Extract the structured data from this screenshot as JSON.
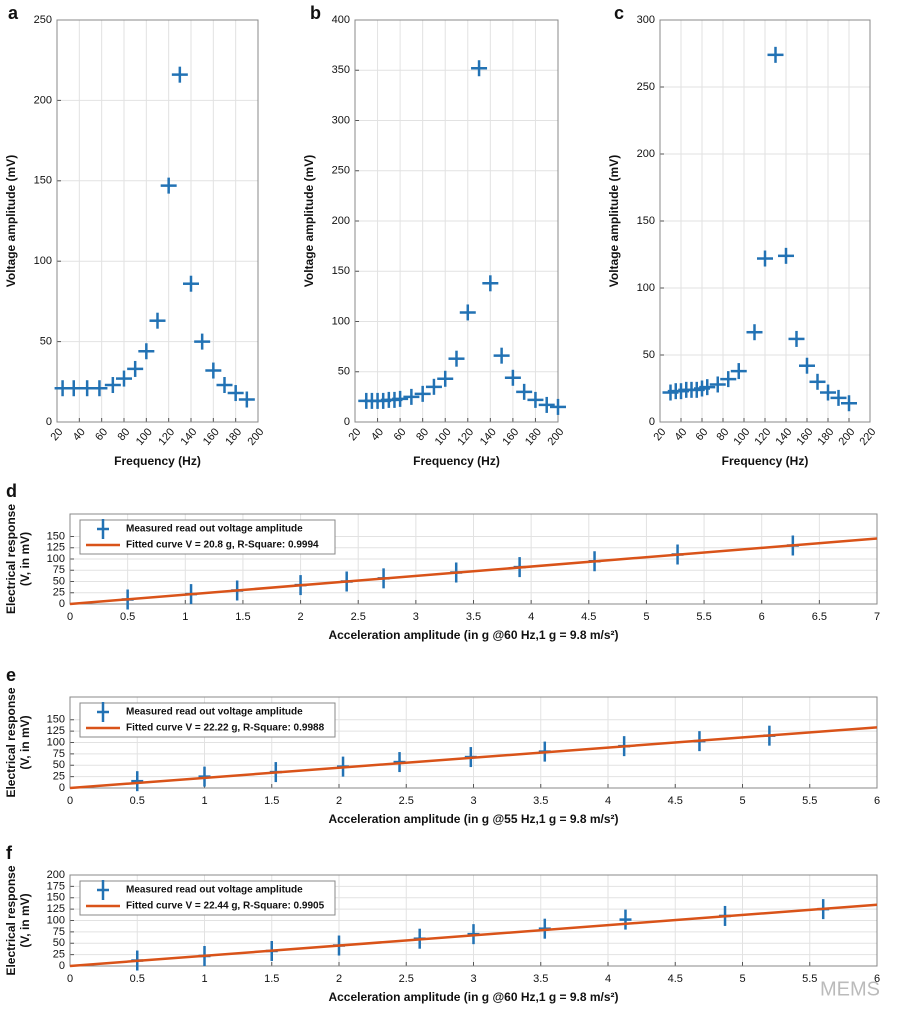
{
  "chart_data": [
    {
      "type": "scatter",
      "panel": "a",
      "xlabel": "Frequency (Hz)",
      "ylabel": "Voltage amplitude (mV)",
      "xlim": [
        20,
        200
      ],
      "ylim": [
        0,
        250
      ],
      "xticks": [
        20,
        40,
        60,
        80,
        100,
        120,
        140,
        160,
        180,
        200
      ],
      "yticks": [
        0,
        50,
        100,
        150,
        200,
        250
      ],
      "grid": true,
      "series": [
        {
          "color": "#2272b4",
          "x": [
            25,
            35,
            47,
            58,
            70,
            80,
            90,
            100,
            110,
            120,
            130,
            140,
            150,
            160,
            170,
            180,
            190
          ],
          "values": [
            21,
            21,
            21,
            21,
            23,
            27,
            33,
            44,
            63,
            147,
            216,
            86,
            50,
            32,
            23,
            18,
            14
          ]
        }
      ]
    },
    {
      "type": "scatter",
      "panel": "b",
      "xlabel": "Frequency (Hz)",
      "ylabel": "Voltage amplitude (mV)",
      "xlim": [
        20,
        200
      ],
      "ylim": [
        0,
        400
      ],
      "xticks": [
        20,
        40,
        60,
        80,
        100,
        120,
        140,
        160,
        180,
        200
      ],
      "yticks": [
        0,
        50,
        100,
        150,
        200,
        250,
        300,
        350,
        400
      ],
      "grid": true,
      "series": [
        {
          "color": "#2272b4",
          "x": [
            30,
            35,
            40,
            45,
            50,
            55,
            60,
            70,
            80,
            90,
            100,
            110,
            120,
            130,
            140,
            150,
            160,
            170,
            180,
            190,
            200
          ],
          "values": [
            21,
            21,
            21,
            21,
            22,
            22,
            23,
            25,
            28,
            35,
            43,
            63,
            109,
            352,
            138,
            66,
            44,
            30,
            22,
            17,
            15
          ]
        }
      ]
    },
    {
      "type": "scatter",
      "panel": "c",
      "xlabel": "Frequency (Hz)",
      "ylabel": "Voltage amplitude (mV)",
      "xlim": [
        20,
        220
      ],
      "ylim": [
        0,
        300
      ],
      "xticks": [
        20,
        40,
        60,
        80,
        100,
        120,
        140,
        160,
        180,
        200,
        220
      ],
      "yticks": [
        0,
        50,
        100,
        150,
        200,
        250,
        300
      ],
      "grid": true,
      "series": [
        {
          "color": "#2272b4",
          "x": [
            30,
            35,
            40,
            45,
            50,
            55,
            60,
            65,
            75,
            85,
            95,
            110,
            120,
            130,
            140,
            150,
            160,
            170,
            180,
            190,
            200
          ],
          "values": [
            22,
            23,
            23,
            24,
            24,
            24,
            25,
            26,
            28,
            32,
            38,
            67,
            122,
            274,
            124,
            62,
            42,
            30,
            22,
            18,
            14
          ]
        }
      ]
    },
    {
      "type": "fit",
      "panel": "d",
      "xlabel": "Acceleration amplitude (in g @60 Hz,1 g = 9.8 m/s²)",
      "ylabel": [
        "Electrical response",
        "(V, in mV)"
      ],
      "xlim": [
        0,
        7
      ],
      "ylim": [
        0,
        200
      ],
      "xticks": [
        0,
        0.5,
        1,
        1.5,
        2,
        2.5,
        3,
        3.5,
        4,
        4.5,
        5,
        5.5,
        6,
        6.5,
        7
      ],
      "yticks": [
        0,
        25,
        50,
        75,
        100,
        125,
        150
      ],
      "grid": true,
      "legend": "upper left",
      "series": [
        {
          "name": "Measured read out voltage amplitude",
          "color": "#2272b4",
          "x": [
            0.5,
            1.05,
            1.45,
            2.0,
            2.4,
            2.72,
            3.35,
            3.9,
            4.55,
            5.27,
            6.27
          ],
          "values": [
            10,
            22,
            30,
            42,
            50,
            57,
            70,
            82,
            95,
            110,
            130
          ]
        },
        {
          "name": "Fitted curve V = 20.8 g, R-Square: 0.9994",
          "color": "#d95319",
          "style": "line",
          "x": [
            0,
            7
          ],
          "values": [
            0,
            145.6
          ]
        }
      ]
    },
    {
      "type": "fit",
      "panel": "e",
      "xlabel": "Acceleration amplitude (in g @55 Hz,1 g = 9.8 m/s²)",
      "ylabel": [
        "Electrical response",
        "(V, in mV)"
      ],
      "xlim": [
        0,
        6
      ],
      "ylim": [
        0,
        200
      ],
      "xticks": [
        0,
        0.5,
        1,
        1.5,
        2,
        2.5,
        3,
        3.5,
        4,
        4.5,
        5,
        5.5,
        6
      ],
      "yticks": [
        0,
        25,
        50,
        75,
        100,
        125,
        150
      ],
      "grid": true,
      "legend": "upper left",
      "series": [
        {
          "name": "Measured read out voltage amplitude",
          "color": "#2272b4",
          "x": [
            0.5,
            1.0,
            1.53,
            2.03,
            2.45,
            2.98,
            3.53,
            4.12,
            4.68,
            5.2
          ],
          "values": [
            15,
            25,
            35,
            47,
            57,
            68,
            80,
            92,
            103,
            115
          ]
        },
        {
          "name": "Fitted curve V = 22.22 g, R-Square: 0.9988",
          "color": "#d95319",
          "style": "line",
          "x": [
            0,
            6
          ],
          "values": [
            0,
            133.32
          ]
        }
      ]
    },
    {
      "type": "fit",
      "panel": "f",
      "xlabel": "Acceleration amplitude (in g @60 Hz,1 g = 9.8 m/s²)",
      "ylabel": [
        "Electrical response",
        "(V, in mV)"
      ],
      "xlim": [
        0,
        6
      ],
      "ylim": [
        0,
        200
      ],
      "xticks": [
        0,
        0.5,
        1,
        1.5,
        2,
        2.5,
        3,
        3.5,
        4,
        4.5,
        5,
        5.5,
        6
      ],
      "yticks": [
        0,
        25,
        50,
        75,
        100,
        125,
        150,
        175,
        200
      ],
      "grid": true,
      "legend": "upper left",
      "series": [
        {
          "name": "Measured read out voltage amplitude",
          "color": "#2272b4",
          "x": [
            0.5,
            1.0,
            1.5,
            2.0,
            2.6,
            3.0,
            3.53,
            4.13,
            4.87,
            5.6
          ],
          "values": [
            12,
            22,
            33,
            45,
            60,
            70,
            82,
            102,
            110,
            125
          ]
        },
        {
          "name": "Fitted curve V = 22.44 g, R-Square: 0.9905",
          "color": "#d95319",
          "style": "line",
          "x": [
            0,
            6
          ],
          "values": [
            0,
            134.64
          ]
        }
      ]
    }
  ],
  "watermark": "MEMS"
}
